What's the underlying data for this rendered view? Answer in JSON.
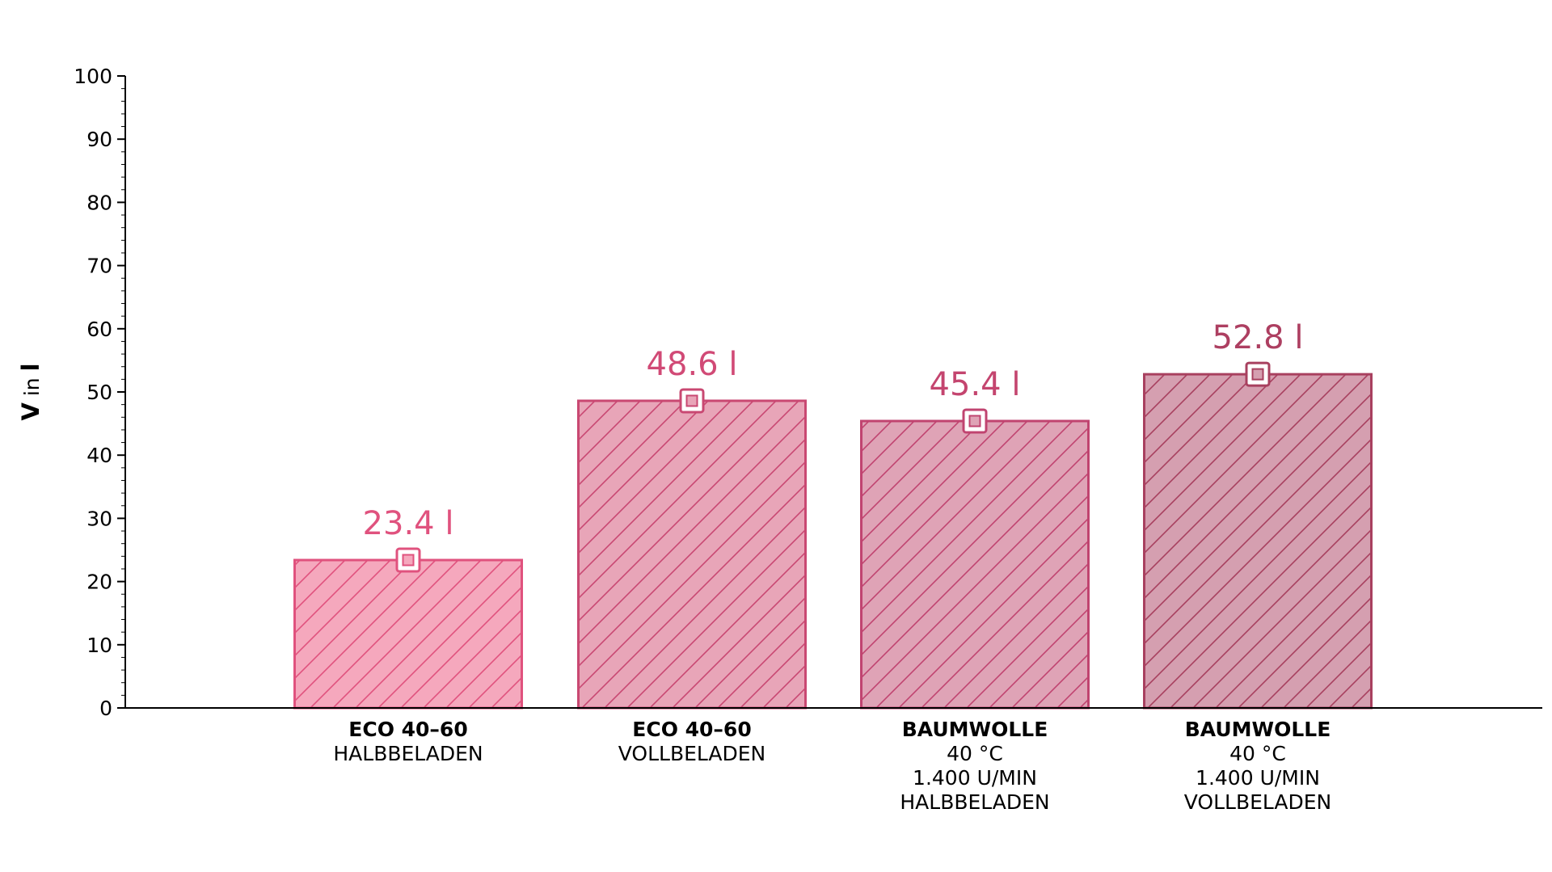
{
  "chart_data": {
    "type": "bar",
    "ylabel_main": "V",
    "ylabel_mid": "in",
    "ylabel_unit": "l",
    "ylim": [
      0,
      100
    ],
    "yticks": [
      0,
      10,
      20,
      30,
      40,
      50,
      60,
      70,
      80,
      90,
      100
    ],
    "minor_tick_step": 2,
    "grid": false,
    "categories": [
      {
        "title": "ECO 40–60",
        "lines": [
          "HALBBELADEN"
        ]
      },
      {
        "title": "ECO 40–60",
        "lines": [
          "VOLLBELADEN"
        ]
      },
      {
        "title": "BAUMWOLLE",
        "lines": [
          "40 °C",
          "1.400 U/MIN",
          "HALBBELADEN"
        ]
      },
      {
        "title": "BAUMWOLLE",
        "lines": [
          "40 °C",
          "1.400 U/MIN",
          "VOLLBELADEN"
        ]
      }
    ],
    "values": [
      23.4,
      48.6,
      45.4,
      52.8
    ],
    "value_labels": [
      "23.4 l",
      "48.6 l",
      "45.4 l",
      "52.8 l"
    ],
    "colors": {
      "fills": [
        "#f5a8bd",
        "#e8a5b8",
        "#dfa3b6",
        "#d59fb0"
      ],
      "edges": [
        "#e0527e",
        "#c94872",
        "#c04470",
        "#a8405f"
      ],
      "labels": [
        "#e0527e",
        "#d14a76",
        "#c4456f",
        "#ad3f61"
      ]
    }
  }
}
